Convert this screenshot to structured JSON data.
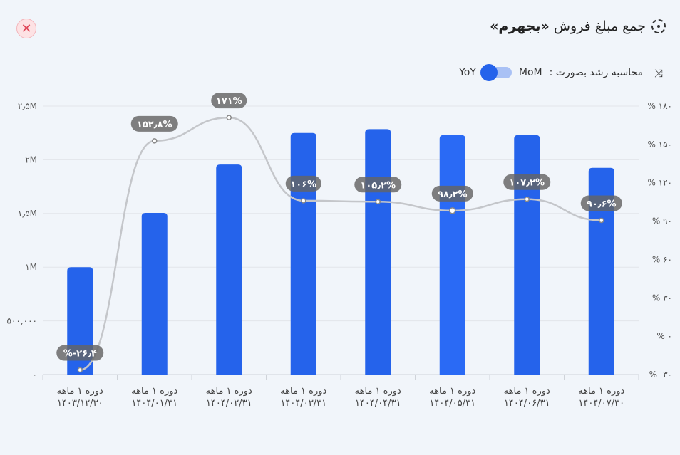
{
  "header": {
    "title_prefix": "جمع مبلغ فروش",
    "title_bold": "«بجهرم»",
    "close_icon": "close-icon",
    "title_icon": "dashed-circle-icon"
  },
  "growth": {
    "label": "محاسبه رشد بصورت :",
    "option_left": "YoY",
    "option_right": "MoM",
    "selected": "YoY",
    "icon": "trend-arrows-icon"
  },
  "chart_data": {
    "type": "bar",
    "categories": [
      [
        "دوره ۱ ماهه",
        "۱۴۰۳/۱۲/۳۰"
      ],
      [
        "دوره ۱ ماهه",
        "۱۴۰۴/۰۱/۳۱"
      ],
      [
        "دوره ۱ ماهه",
        "۱۴۰۴/۰۲/۳۱"
      ],
      [
        "دوره ۱ ماهه",
        "۱۴۰۴/۰۳/۳۱"
      ],
      [
        "دوره ۱ ماهه",
        "۱۴۰۴/۰۴/۳۱"
      ],
      [
        "دوره ۱ ماهه",
        "۱۴۰۴/۰۵/۳۱"
      ],
      [
        "دوره ۱ ماهه",
        "۱۴۰۴/۰۶/۳۱"
      ],
      [
        "دوره ۱ ماهه",
        "۱۴۰۴/۰۷/۳۰"
      ]
    ],
    "series": [
      {
        "name": "sales",
        "axis": "left",
        "type": "bar",
        "color": "#2563eb",
        "values": [
          1000000,
          1505000,
          1955000,
          2250000,
          2285000,
          2230000,
          2230000,
          1925000
        ]
      },
      {
        "name": "growth",
        "axis": "right",
        "type": "line",
        "color": "#c4c6ca",
        "values": [
          -26.4,
          152.8,
          171,
          106,
          105.2,
          98.2,
          107.2,
          90.6
        ],
        "labels": [
          "%-۲۶٫۴",
          "۱۵۲٫۸%",
          "۱۷۱%",
          "۱۰۶%",
          "۱۰۵٫۲%",
          "۹۸٫۲%",
          "۱۰۷٫۲%",
          "۹۰٫۶%"
        ]
      }
    ],
    "left_axis": {
      "ylim": [
        0,
        2500000
      ],
      "ticks": [
        0,
        500000,
        1000000,
        1500000,
        2000000,
        2500000
      ],
      "tick_labels": [
        "۰",
        "۵۰۰,۰۰۰",
        "۱M",
        "۱٫۵M",
        "۲M",
        "۲٫۵M"
      ]
    },
    "right_axis": {
      "ylim": [
        -30,
        180
      ],
      "ticks": [
        -30,
        0,
        30,
        60,
        90,
        120,
        150,
        180
      ],
      "tick_labels": [
        "% -۳۰",
        "% ۰",
        "% ۳۰",
        "% ۶۰",
        "% ۹۰",
        "% ۱۲۰",
        "% ۱۵۰",
        "% ۱۸۰"
      ]
    },
    "grid": true,
    "title": "",
    "xlabel": "",
    "ylabel": ""
  }
}
